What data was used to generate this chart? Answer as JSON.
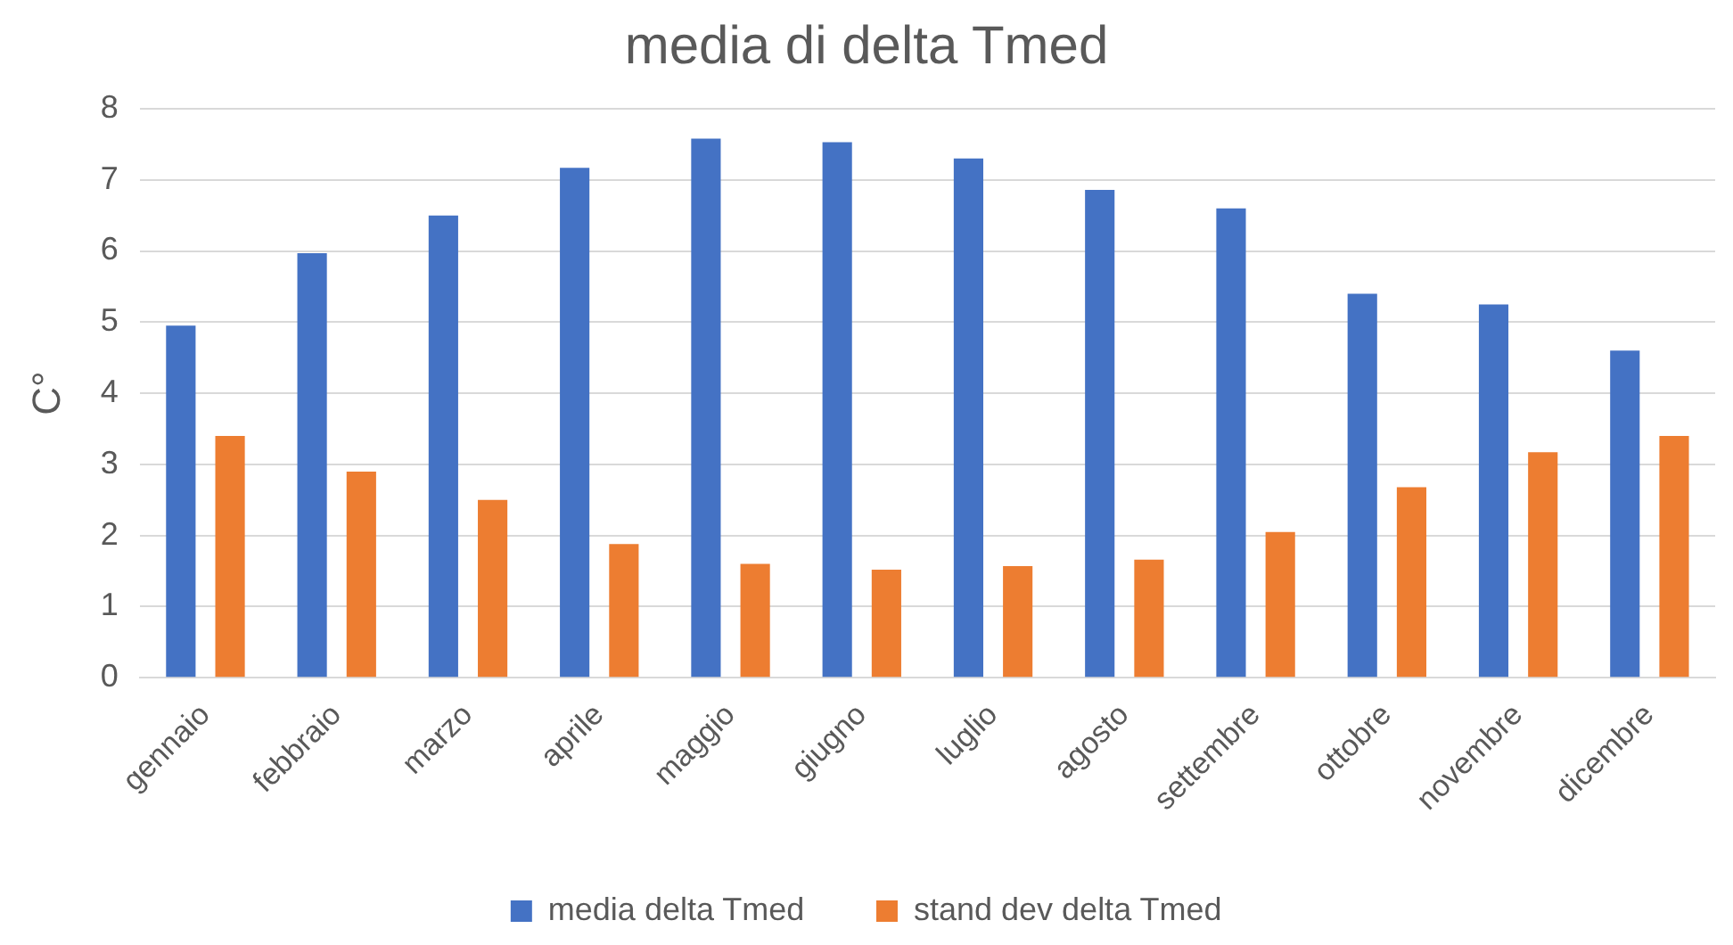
{
  "chart_data": {
    "type": "bar",
    "title": "media di delta Tmed",
    "ylabel": "C°",
    "categories": [
      "gennaio",
      "febbraio",
      "marzo",
      "aprile",
      "maggio",
      "giugno",
      "luglio",
      "agosto",
      "settembre",
      "ottobre",
      "novembre",
      "dicembre"
    ],
    "series": [
      {
        "name": "media delta Tmed",
        "color": "#4472c4",
        "values": [
          4.95,
          5.97,
          6.5,
          7.17,
          7.58,
          7.53,
          7.3,
          6.86,
          6.6,
          5.4,
          5.25,
          4.6
        ]
      },
      {
        "name": "stand dev delta Tmed",
        "color": "#ed7d31",
        "values": [
          3.4,
          2.9,
          2.5,
          1.88,
          1.6,
          1.52,
          1.57,
          1.66,
          2.05,
          2.68,
          3.17,
          3.4
        ]
      }
    ],
    "ylim": [
      0,
      8
    ],
    "yticks": [
      0,
      1,
      2,
      3,
      4,
      5,
      6,
      7,
      8
    ],
    "grid": "y",
    "legend": "bottom"
  }
}
